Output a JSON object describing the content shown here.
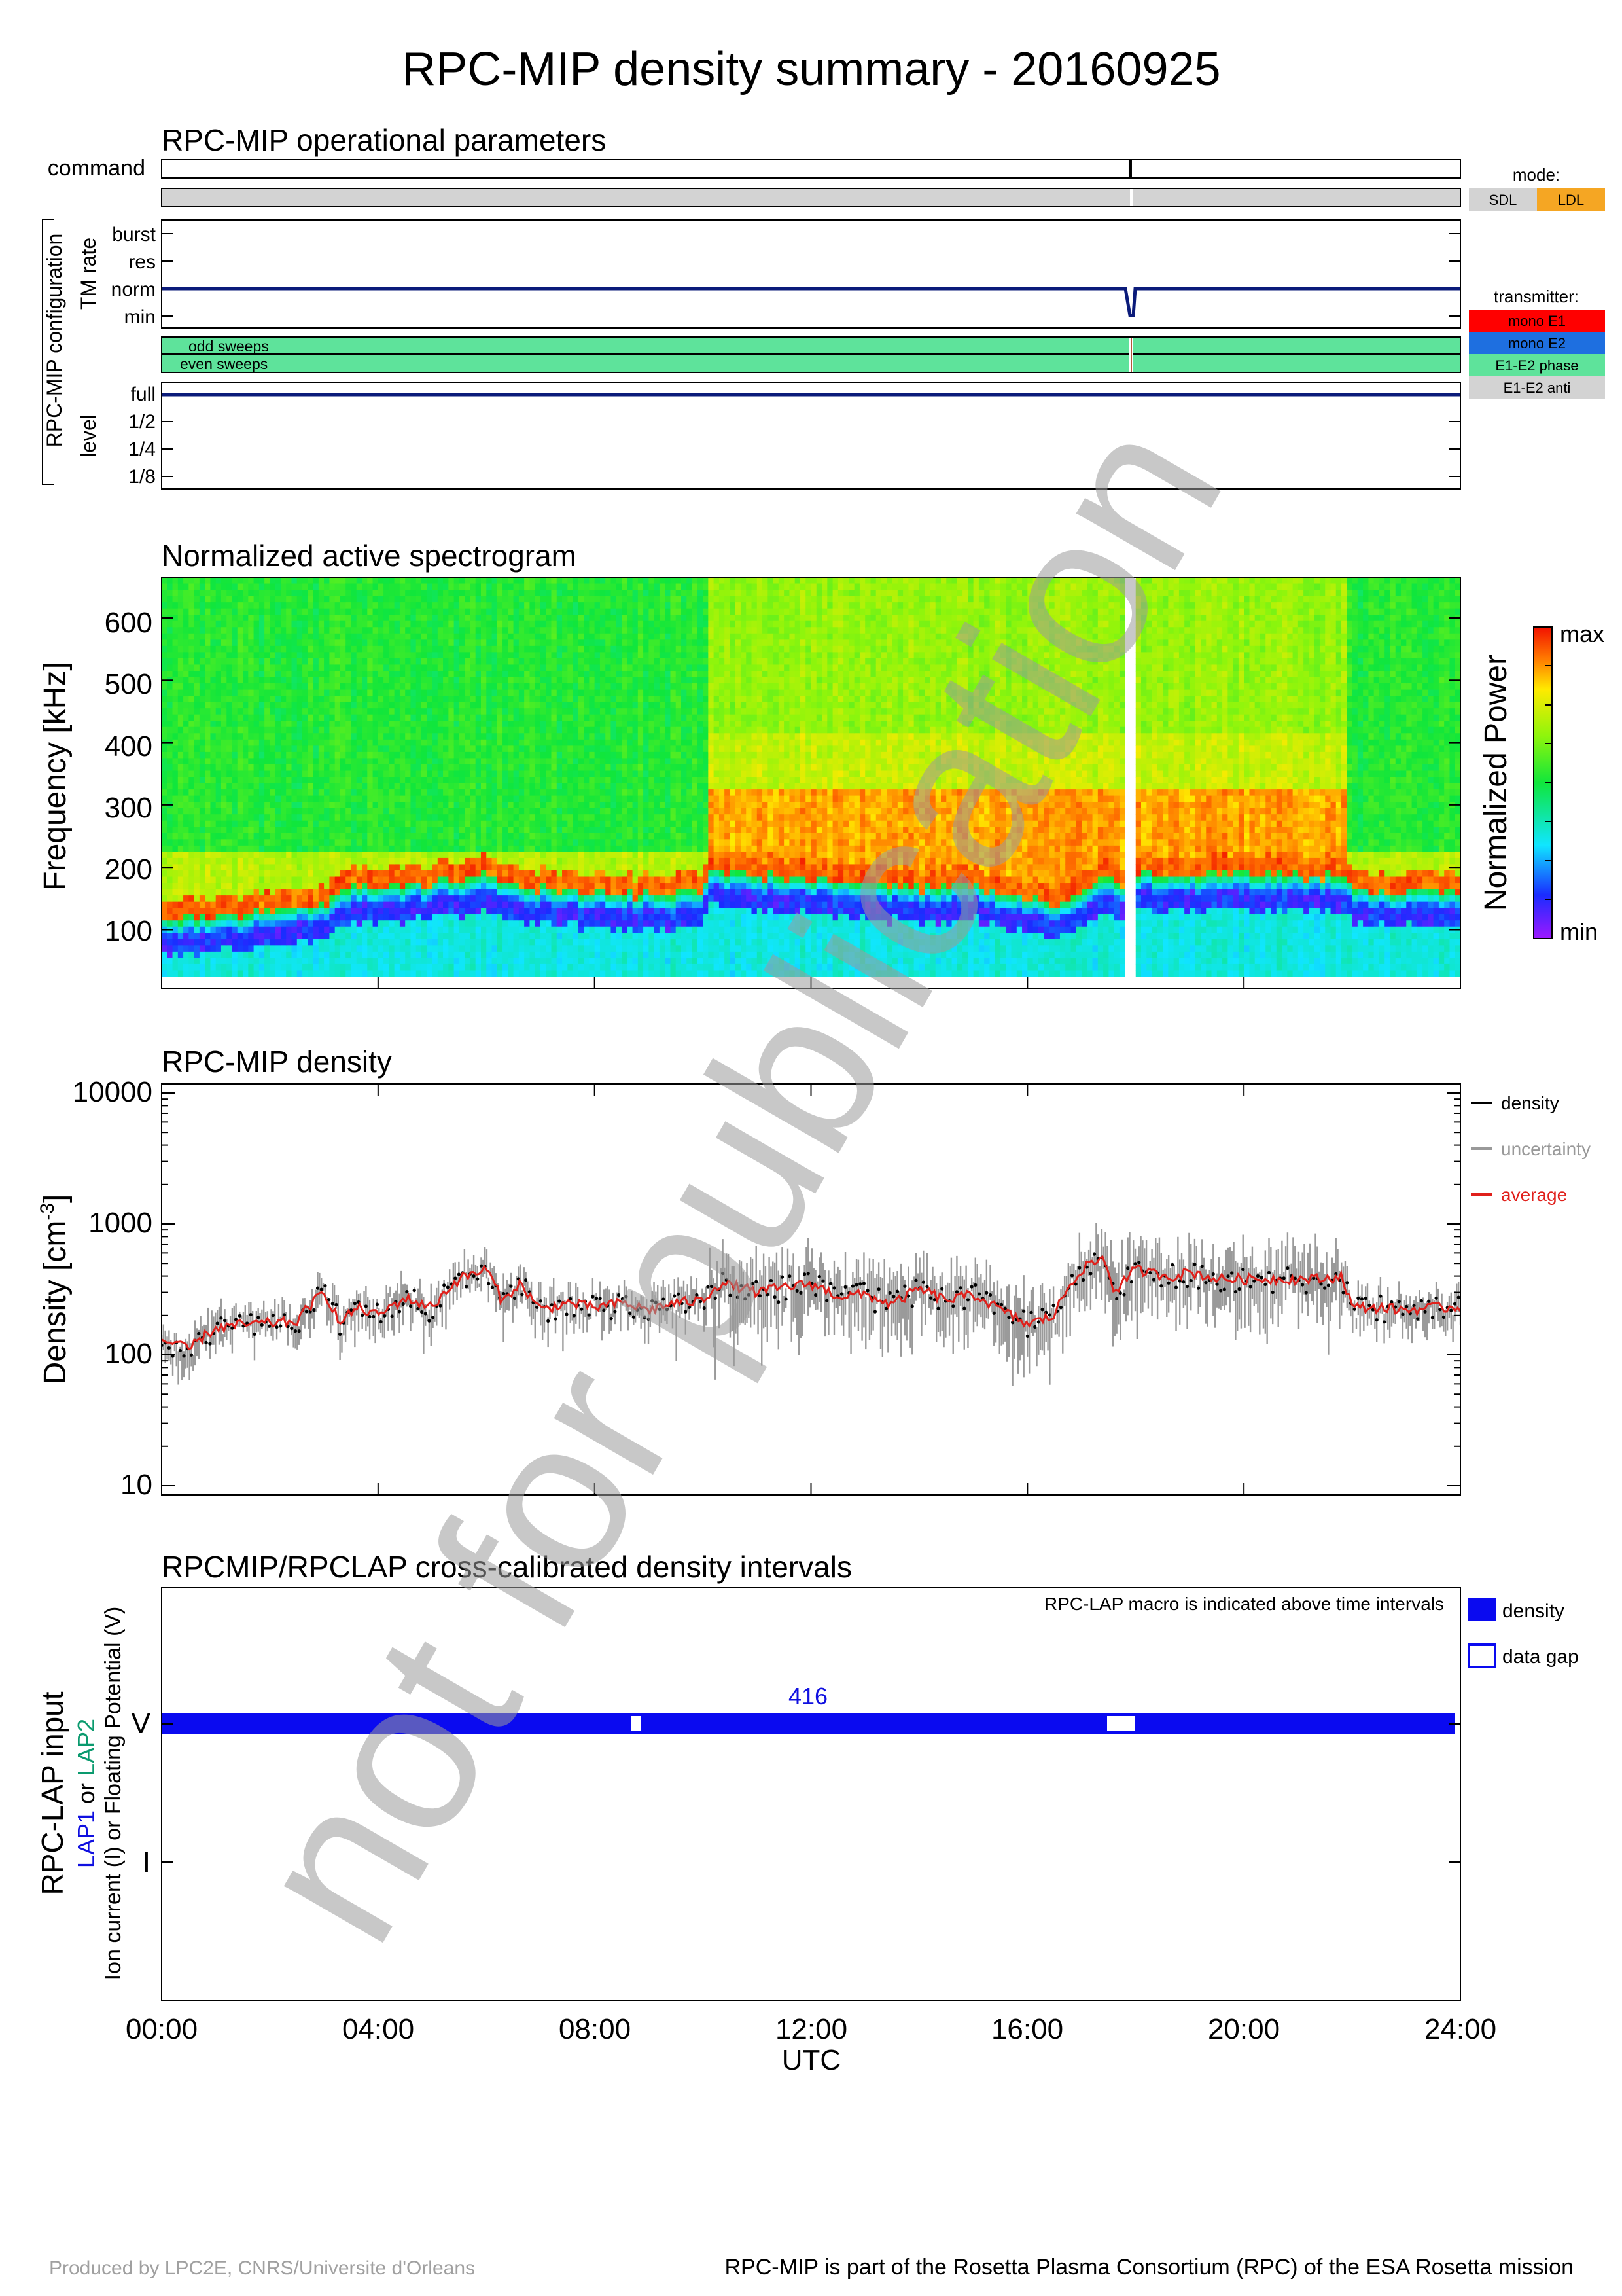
{
  "title": "RPC-MIP density summary - 20160925",
  "watermark": "not for publication",
  "footer": {
    "left": "Produced by LPC2E, CNRS/Universite d'Orleans",
    "right": "RPC-MIP is part of the Rosetta Plasma Consortium (RPC) of the ESA Rosetta mission"
  },
  "ops": {
    "title": "RPC-MIP operational parameters",
    "command_label": "command",
    "group_label": "RPC-MIP configuration",
    "tm_rate_label": "TM rate",
    "tm_rate_levels": [
      "burst",
      "res",
      "norm",
      "min"
    ],
    "tm_rate_value": "norm",
    "sweeps": [
      "odd sweeps",
      "even sweeps"
    ],
    "level_label": "level",
    "levels": [
      "full",
      "1/2",
      "1/4",
      "1/8"
    ],
    "level_value": "full",
    "command_times_h": [
      17.9
    ],
    "gap_times_h": [
      17.9
    ],
    "mode_title": "mode:",
    "modes": [
      {
        "label": "SDL",
        "color": "#d3d3d3"
      },
      {
        "label": "LDL",
        "color": "#f5a623"
      }
    ],
    "transmitter_title": "transmitter:",
    "transmitters": [
      {
        "label": "mono E1",
        "color": "#ff0000"
      },
      {
        "label": "mono E2",
        "color": "#1e6fe0"
      },
      {
        "label": "E1-E2 phase",
        "color": "#5ee39b"
      },
      {
        "label": "E1-E2 anti",
        "color": "#d3d3d3"
      }
    ]
  },
  "spectrogram": {
    "title": "Normalized active spectrogram",
    "ylabel": "Frequency [kHz]",
    "yticks": [
      "600",
      "500",
      "400",
      "300",
      "200",
      "100"
    ],
    "colorbar_label": "Normalized Power",
    "colorbar_max": "max",
    "colorbar_min": "min"
  },
  "density": {
    "title": "RPC-MIP density",
    "ylabel": "Density [cm",
    "ylabel_sup": "-3",
    "ylabel_end": "]",
    "yticks": [
      "10000",
      "1000",
      "100",
      "10"
    ],
    "legend": [
      {
        "label": "density",
        "color": "#000000"
      },
      {
        "label": "uncertainty",
        "color": "#999999"
      },
      {
        "label": "average",
        "color": "#e0201b"
      }
    ]
  },
  "lap": {
    "title": "RPCMIP/RPCLAP cross-calibrated density intervals",
    "note": "RPC-LAP macro is indicated above time intervals",
    "ylabel": "RPC-LAP input",
    "ylabel_lap1": "LAP1",
    "ylabel_or": " or ",
    "ylabel_lap2": "LAP2",
    "ylabel_desc": "Ion current (I) or Floating Potential (V)",
    "row_v": "V",
    "row_i": "I",
    "macro": "416",
    "legend_density": "density",
    "legend_gap": "data gap"
  },
  "xaxis": {
    "ticks": [
      "00:00",
      "04:00",
      "08:00",
      "12:00",
      "16:00",
      "20:00",
      "24:00"
    ],
    "label": "UTC"
  },
  "chart_data": [
    {
      "type": "heatmap",
      "title": "Normalized active spectrogram",
      "xlabel": "UTC",
      "ylabel": "Frequency [kHz]",
      "xlim": [
        0,
        24
      ],
      "ylim": [
        25,
        665
      ],
      "lower_band_edge_khz": {
        "x_hours": [
          0,
          1,
          2,
          3,
          3.5,
          4,
          5,
          6,
          7,
          8,
          9,
          10,
          10.1,
          11,
          12,
          13,
          14,
          15,
          16,
          16.5,
          17,
          17.5,
          17.8,
          18,
          19,
          20,
          21,
          21.9,
          22,
          23,
          24
        ],
        "values": [
          115,
          120,
          130,
          140,
          170,
          165,
          175,
          185,
          165,
          160,
          155,
          160,
          195,
          185,
          180,
          175,
          165,
          170,
          150,
          145,
          160,
          185,
          165,
          190,
          185,
          185,
          185,
          185,
          160,
          160,
          160
        ]
      },
      "annotations": [
        "data gap at ~17.9 h"
      ]
    },
    {
      "type": "line",
      "title": "RPC-MIP density",
      "xlabel": "UTC",
      "ylabel": "Density [cm^-3]",
      "yscale": "log",
      "xlim": [
        0,
        24
      ],
      "ylim": [
        10,
        10000
      ],
      "x": [
        0.0,
        0.5,
        1.0,
        1.5,
        2.0,
        2.5,
        3.0,
        3.3,
        3.6,
        4.0,
        4.5,
        5.0,
        5.5,
        6.0,
        6.3,
        6.6,
        7.0,
        7.5,
        8.0,
        8.5,
        9.0,
        9.5,
        10.0,
        10.3,
        10.7,
        11.0,
        11.5,
        12.0,
        12.5,
        13.0,
        13.5,
        14.0,
        14.5,
        15.0,
        15.5,
        16.0,
        16.5,
        17.0,
        17.4,
        17.6,
        18.0,
        18.3,
        18.7,
        19.0,
        19.5,
        20.0,
        20.5,
        21.0,
        21.5,
        21.8,
        22.0,
        22.5,
        23.0,
        23.5,
        24.0
      ],
      "series": [
        {
          "name": "average",
          "values": [
            130,
            110,
            160,
            170,
            175,
            180,
            300,
            170,
            230,
            200,
            270,
            230,
            380,
            450,
            250,
            350,
            220,
            250,
            230,
            250,
            220,
            250,
            260,
            350,
            330,
            300,
            330,
            350,
            280,
            290,
            240,
            320,
            260,
            290,
            220,
            170,
            200,
            450,
            550,
            300,
            450,
            420,
            400,
            430,
            380,
            380,
            380,
            380,
            380,
            400,
            230,
            230,
            220,
            230,
            230
          ]
        }
      ]
    }
  ]
}
